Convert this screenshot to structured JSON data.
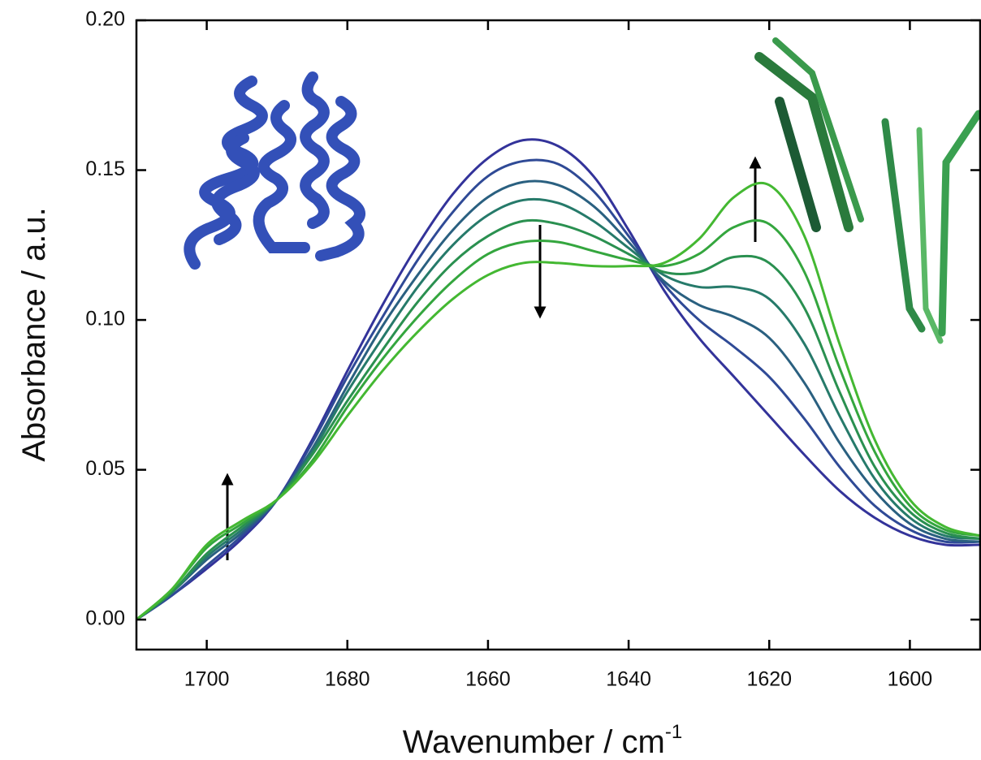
{
  "chart_data": {
    "type": "line",
    "ylabel": "Absorbance / a.u.",
    "xlabel": {
      "text": "Wavenumber / cm",
      "superscript": "-1"
    },
    "x": [
      1710,
      1705,
      1700,
      1695,
      1690,
      1685,
      1680,
      1675,
      1670,
      1665,
      1660,
      1655,
      1650,
      1645,
      1640,
      1635,
      1630,
      1625,
      1620,
      1615,
      1610,
      1605,
      1600,
      1595,
      1590
    ],
    "xlim": [
      1710,
      1590
    ],
    "xticks": [
      1700,
      1680,
      1660,
      1640,
      1620,
      1600
    ],
    "ylim": [
      -0.01,
      0.2
    ],
    "yticks": [
      {
        "value": 0,
        "label": "0.00"
      },
      {
        "value": 0.05,
        "label": "0.05"
      },
      {
        "value": 0.1,
        "label": "0.10"
      },
      {
        "value": 0.15,
        "label": "0.15"
      },
      {
        "value": 0.2,
        "label": "0.20"
      }
    ],
    "series": [
      {
        "color": "#33339a",
        "values": [
          0,
          0.008,
          0.017,
          0.027,
          0.04,
          0.06,
          0.083,
          0.105,
          0.125,
          0.142,
          0.154,
          0.16,
          0.158,
          0.148,
          0.13,
          0.11,
          0.094,
          0.081,
          0.068,
          0.055,
          0.043,
          0.034,
          0.028,
          0.025,
          0.025
        ]
      },
      {
        "color": "#2f4a96",
        "values": [
          0,
          0.008,
          0.018,
          0.028,
          0.04,
          0.059,
          0.081,
          0.101,
          0.12,
          0.136,
          0.148,
          0.153,
          0.152,
          0.143,
          0.128,
          0.112,
          0.1,
          0.091,
          0.081,
          0.067,
          0.051,
          0.038,
          0.03,
          0.026,
          0.026
        ]
      },
      {
        "color": "#2a6080",
        "values": [
          0,
          0.009,
          0.02,
          0.029,
          0.04,
          0.057,
          0.078,
          0.098,
          0.115,
          0.13,
          0.141,
          0.146,
          0.145,
          0.138,
          0.126,
          0.113,
          0.105,
          0.101,
          0.094,
          0.079,
          0.059,
          0.043,
          0.032,
          0.027,
          0.026
        ]
      },
      {
        "color": "#267a6a",
        "values": [
          0,
          0.009,
          0.021,
          0.03,
          0.04,
          0.056,
          0.076,
          0.094,
          0.111,
          0.125,
          0.135,
          0.14,
          0.139,
          0.133,
          0.124,
          0.115,
          0.111,
          0.111,
          0.107,
          0.092,
          0.068,
          0.047,
          0.034,
          0.028,
          0.027
        ]
      },
      {
        "color": "#2a9050",
        "values": [
          0,
          0.009,
          0.022,
          0.031,
          0.04,
          0.055,
          0.073,
          0.09,
          0.106,
          0.119,
          0.128,
          0.133,
          0.132,
          0.128,
          0.122,
          0.116,
          0.116,
          0.121,
          0.119,
          0.104,
          0.076,
          0.051,
          0.036,
          0.029,
          0.027
        ]
      },
      {
        "color": "#34a63e",
        "values": [
          0,
          0.01,
          0.024,
          0.032,
          0.04,
          0.053,
          0.071,
          0.087,
          0.101,
          0.113,
          0.122,
          0.126,
          0.126,
          0.123,
          0.12,
          0.118,
          0.122,
          0.131,
          0.132,
          0.116,
          0.084,
          0.056,
          0.038,
          0.03,
          0.028
        ]
      },
      {
        "color": "#44b832",
        "values": [
          0,
          0.01,
          0.025,
          0.033,
          0.04,
          0.052,
          0.068,
          0.083,
          0.096,
          0.107,
          0.115,
          0.119,
          0.119,
          0.118,
          0.118,
          0.119,
          0.127,
          0.141,
          0.145,
          0.128,
          0.092,
          0.06,
          0.04,
          0.031,
          0.028
        ]
      }
    ]
  }
}
